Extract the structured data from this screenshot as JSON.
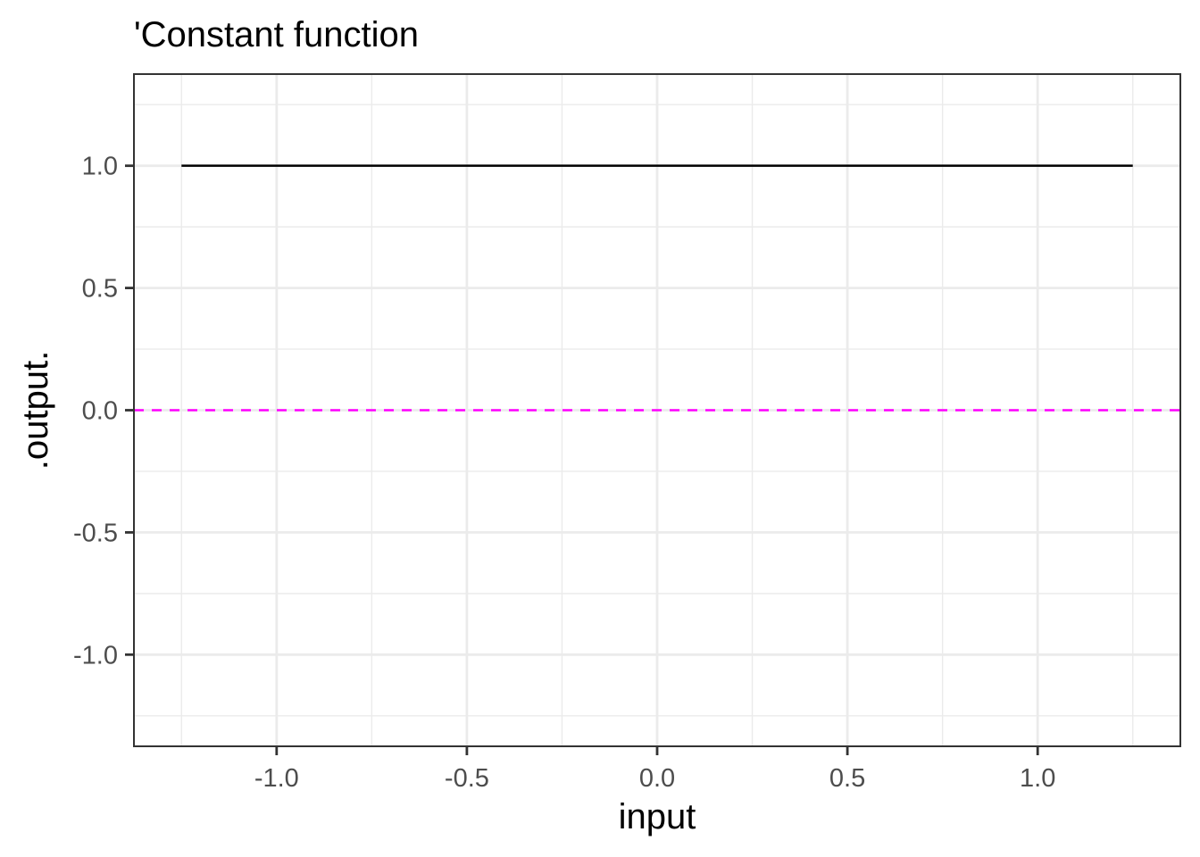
{
  "chart_data": {
    "type": "line",
    "title": "'Constant function",
    "xlabel": "input",
    "ylabel": ".output.",
    "xlim": [
      -1.375,
      1.375
    ],
    "ylim": [
      -1.375,
      1.375
    ],
    "x_ticks": [
      -1.0,
      -0.5,
      0.0,
      0.5,
      1.0
    ],
    "x_tick_labels": [
      "-1.0",
      "-0.5",
      "0.0",
      "0.5",
      "1.0"
    ],
    "y_ticks": [
      -1.0,
      -0.5,
      0.0,
      0.5,
      1.0
    ],
    "y_tick_labels": [
      "-1.0",
      "-0.5",
      "0.0",
      "0.5",
      "1.0"
    ],
    "grid": true,
    "series": [
      {
        "x": [
          -1.25,
          1.25
        ],
        "y": [
          1.0,
          1.0
        ],
        "color": "#000000",
        "style": "solid"
      }
    ],
    "reference_lines": [
      {
        "orientation": "horizontal",
        "y": 0.0,
        "color": "#ff00ff",
        "style": "dashed"
      }
    ]
  }
}
